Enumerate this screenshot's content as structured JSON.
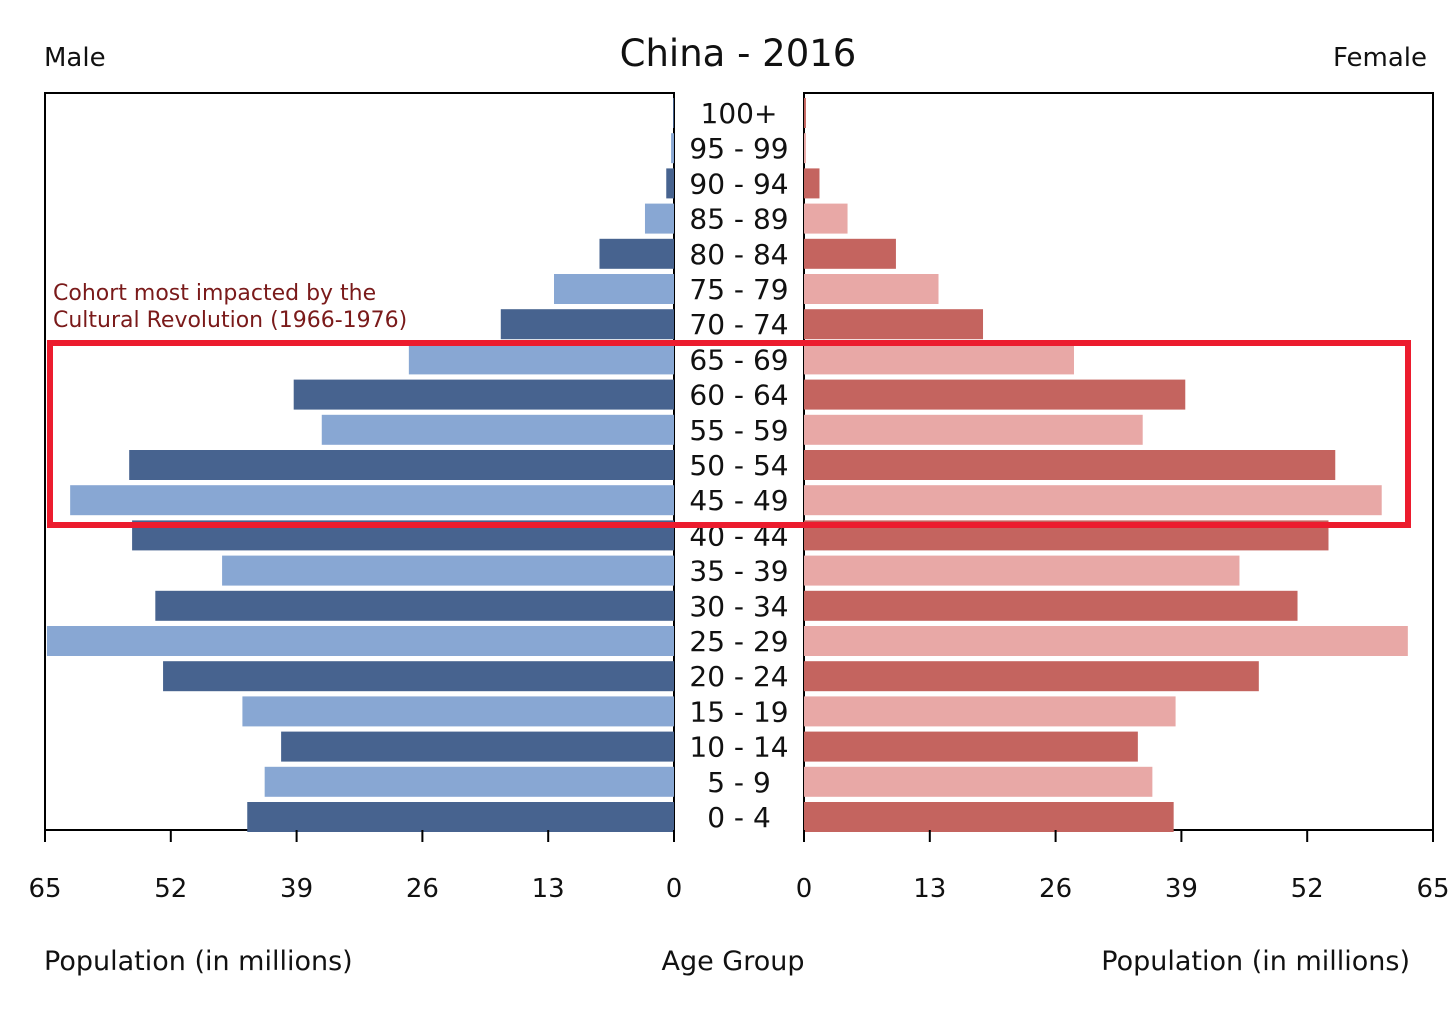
{
  "chart_data": {
    "type": "bar",
    "title": "China - 2016",
    "left_label": "Male",
    "right_label": "Female",
    "center_axis_label": "Age Group",
    "left_axis_label": "Population (in millions)",
    "right_axis_label": "Population (in millions)",
    "xlim": [
      0,
      65
    ],
    "ticks": [
      0,
      13,
      26,
      39,
      52,
      65
    ],
    "left_tick_labels": [
      "65",
      "52",
      "39",
      "26",
      "13",
      "0"
    ],
    "right_tick_labels": [
      "0",
      "13",
      "26",
      "39",
      "52",
      "65"
    ],
    "categories": [
      "100+",
      "95 - 99",
      "90 - 94",
      "85 - 89",
      "80 - 84",
      "75 - 79",
      "70 - 74",
      "65 - 69",
      "60 - 64",
      "55 - 59",
      "50 - 54",
      "45 - 49",
      "40 - 44",
      "35 - 39",
      "30 - 34",
      "25 - 29",
      "20 - 24",
      "15 - 19",
      "10 - 14",
      "5 - 9",
      "0 - 4"
    ],
    "series": [
      {
        "name": "Male",
        "values": [
          0.1,
          0.3,
          0.8,
          3.0,
          7.7,
          12.4,
          17.9,
          27.4,
          39.3,
          36.4,
          56.3,
          62.4,
          56.0,
          46.7,
          53.6,
          64.8,
          52.8,
          44.6,
          40.6,
          42.3,
          44.1
        ],
        "colors": [
          "#47638f",
          "#88a7d3"
        ]
      },
      {
        "name": "Female",
        "values": [
          0.2,
          0.2,
          1.6,
          4.5,
          9.5,
          13.9,
          18.5,
          27.9,
          39.4,
          35.0,
          54.9,
          59.7,
          54.2,
          45.0,
          51.0,
          62.4,
          47.0,
          38.4,
          34.5,
          36.0,
          38.2
        ]
      }
    ],
    "colors": {
      "male_dark": "#47638f",
      "male_light": "#88a7d3",
      "female_dark": "#c4645f",
      "female_light": "#e8a8a6",
      "highlight": "#ec1c2e",
      "annotation": "#7a1a1a"
    },
    "annotation": {
      "lines": [
        "Cohort most impacted by the",
        "Cultural Revolution (1966-1976)"
      ],
      "highlighted_categories": [
        "65 - 69",
        "60 - 64",
        "55 - 59",
        "50 - 54",
        "45 - 49"
      ]
    }
  }
}
